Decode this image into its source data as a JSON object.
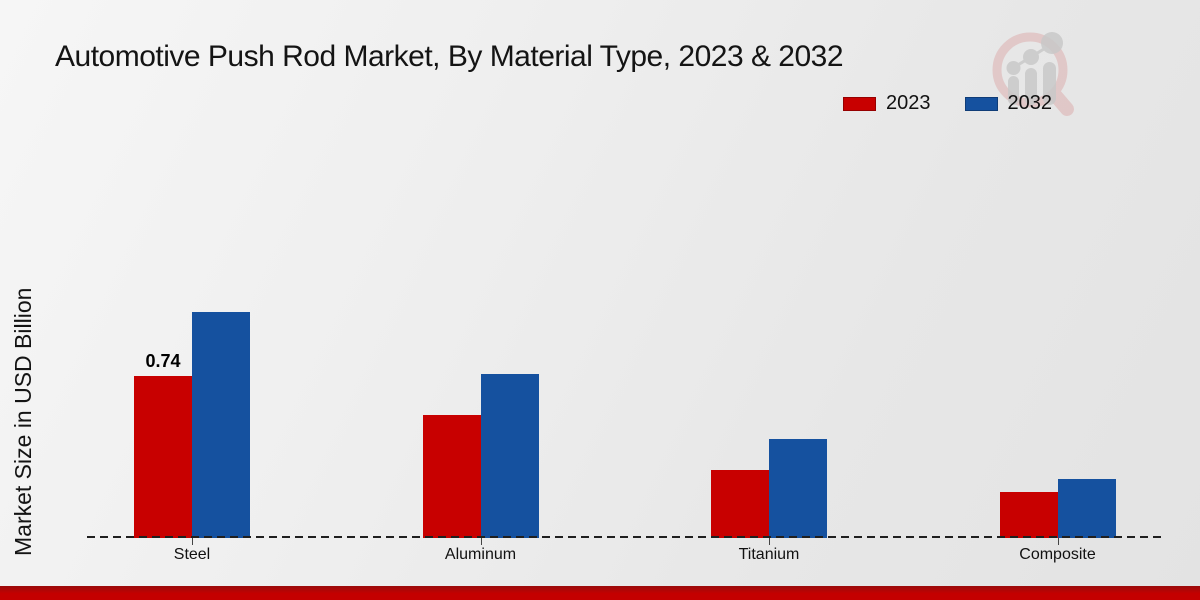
{
  "title": "Automotive Push Rod Market, By Material Type, 2023 & 2032",
  "y_axis_label": "Market Size in USD Billion",
  "watermark_icon": "magnifier-growth-chart-logo",
  "colors": {
    "series_2023": "#c80000",
    "series_2032": "#15519f",
    "bottom_strip": "#c40000",
    "baseline": "#1f1f1f",
    "text": "#1a1a1a",
    "background": "#ececec"
  },
  "legend": {
    "items": [
      {
        "label": "2023",
        "color": "#c80000"
      },
      {
        "label": "2032",
        "color": "#15519f"
      }
    ]
  },
  "chart_data": {
    "type": "bar",
    "categories": [
      "Steel",
      "Aluminum",
      "Titanium",
      "Composite"
    ],
    "series": [
      {
        "name": "2023",
        "color": "#c80000",
        "values": [
          0.74,
          0.56,
          0.31,
          0.21
        ]
      },
      {
        "name": "2032",
        "color": "#15519f",
        "values": [
          1.03,
          0.75,
          0.45,
          0.27
        ]
      }
    ],
    "data_labels": [
      {
        "series": "2023",
        "category": "Steel",
        "text": "0.74"
      }
    ],
    "title": "Automotive Push Rod Market, By Material Type, 2023 & 2032",
    "xlabel": "",
    "ylabel": "Market Size in USD Billion",
    "ylim": [
      0,
      1.15
    ],
    "grid": false,
    "legend_position": "top-right",
    "x_axis_style": "dashed-baseline-no-y-ticks"
  }
}
